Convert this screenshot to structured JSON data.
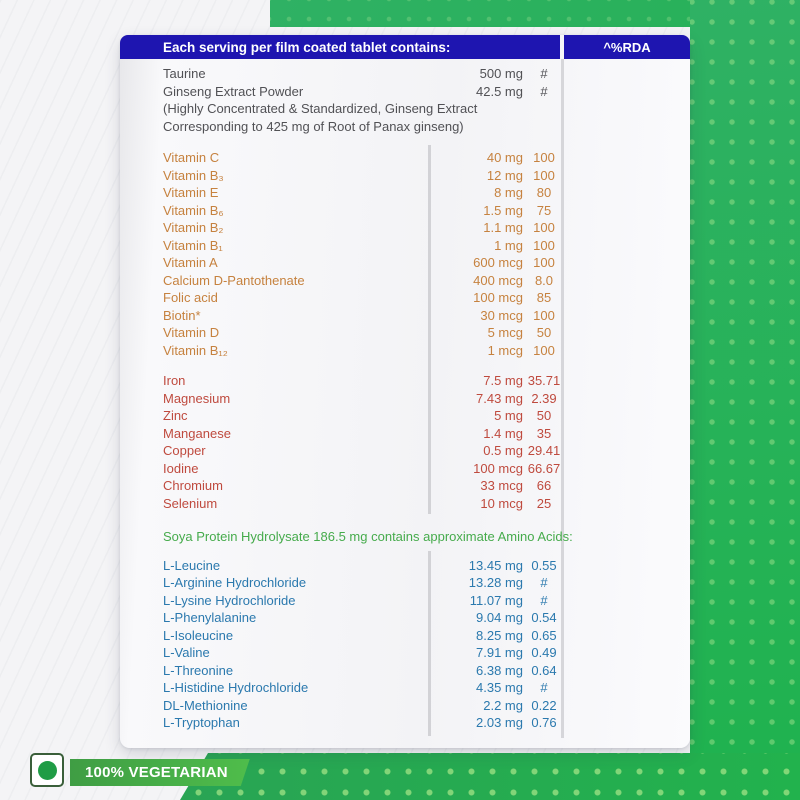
{
  "table": {
    "header": {
      "left": "Each serving per film coated tablet contains:",
      "right": "^%RDA"
    },
    "sections": [
      {
        "name": "base-ingredients",
        "rows": [
          {
            "name": "Taurine",
            "amount": "500 mg",
            "rda": "#"
          },
          {
            "name": "Ginseng Extract Powder",
            "amount": "42.5 mg",
            "rda": "#"
          },
          {
            "name": "(Highly Concentrated & Standardized, Ginseng Extract",
            "amount": "",
            "rda": ""
          },
          {
            "name": "Corresponding to 425 mg of Root of Panax ginseng)",
            "amount": "",
            "rda": ""
          }
        ]
      },
      {
        "name": "vitamins",
        "rows": [
          {
            "name": "Vitamin C",
            "amount": "40 mg",
            "rda": "100"
          },
          {
            "name": "Vitamin B₃",
            "amount": "12 mg",
            "rda": "100"
          },
          {
            "name": "Vitamin E",
            "amount": "8 mg",
            "rda": "80"
          },
          {
            "name": "Vitamin B₆",
            "amount": "1.5 mg",
            "rda": "75"
          },
          {
            "name": "Vitamin B₂",
            "amount": "1.1 mg",
            "rda": "100"
          },
          {
            "name": "Vitamin B₁",
            "amount": "1 mg",
            "rda": "100"
          },
          {
            "name": "Vitamin A",
            "amount": "600 mcg",
            "rda": "100"
          },
          {
            "name": "Calcium D-Pantothenate",
            "amount": "400 mcg",
            "rda": "8.0"
          },
          {
            "name": "Folic acid",
            "amount": "100 mcg",
            "rda": "85"
          },
          {
            "name": "Biotin*",
            "amount": "30 mcg",
            "rda": "100"
          },
          {
            "name": "Vitamin D",
            "amount": "5 mcg",
            "rda": "50"
          },
          {
            "name": "Vitamin B₁₂",
            "amount": "1 mcg",
            "rda": "100"
          }
        ]
      },
      {
        "name": "minerals",
        "rows": [
          {
            "name": "Iron",
            "amount": "7.5 mg",
            "rda": "35.71"
          },
          {
            "name": "Magnesium",
            "amount": "7.43 mg",
            "rda": "2.39"
          },
          {
            "name": "Zinc",
            "amount": "5 mg",
            "rda": "50"
          },
          {
            "name": "Manganese",
            "amount": "1.4 mg",
            "rda": "35"
          },
          {
            "name": "Copper",
            "amount": "0.5 mg",
            "rda": "29.41"
          },
          {
            "name": "Iodine",
            "amount": "100 mcg",
            "rda": "66.67"
          },
          {
            "name": "Chromium",
            "amount": "33 mcg",
            "rda": "66"
          },
          {
            "name": "Selenium",
            "amount": "10 mcg",
            "rda": "25"
          }
        ]
      },
      {
        "name": "amino-acids",
        "rows": [
          {
            "name": "L-Leucine",
            "amount": "13.45 mg",
            "rda": "0.55"
          },
          {
            "name": "L-Arginine Hydrochloride",
            "amount": "13.28 mg",
            "rda": "#"
          },
          {
            "name": "L-Lysine Hydrochloride",
            "amount": "11.07 mg",
            "rda": "#"
          },
          {
            "name": "L-Phenylalanine",
            "amount": "9.04 mg",
            "rda": "0.54"
          },
          {
            "name": "L-Isoleucine",
            "amount": "8.25 mg",
            "rda": "0.65"
          },
          {
            "name": "L-Valine",
            "amount": "7.91 mg",
            "rda": "0.49"
          },
          {
            "name": "L-Threonine",
            "amount": "6.38 mg",
            "rda": "0.64"
          },
          {
            "name": "L-Histidine Hydrochloride",
            "amount": "4.35 mg",
            "rda": "#"
          },
          {
            "name": "DL-Methionine",
            "amount": "2.2 mg",
            "rda": "0.22"
          },
          {
            "name": "L-Tryptophan",
            "amount": "2.03 mg",
            "rda": "0.76"
          }
        ]
      }
    ],
    "amino_heading": "Soya Protein Hydrolysate 186.5 mg contains approximate Amino Acids:"
  },
  "badge": {
    "label": "100% VEGETARIAN"
  },
  "colors": {
    "header_bar": "#1e15b0",
    "base_text": "#515155",
    "vitamins_text": "#c6823f",
    "minerals_text": "#bf4a3e",
    "amino_heading_text": "#46ab4c",
    "amino_text": "#2b79ae",
    "page_green": "#27b156",
    "badge_green": "#45ad48",
    "divider_gray": "#d4d4d8"
  }
}
